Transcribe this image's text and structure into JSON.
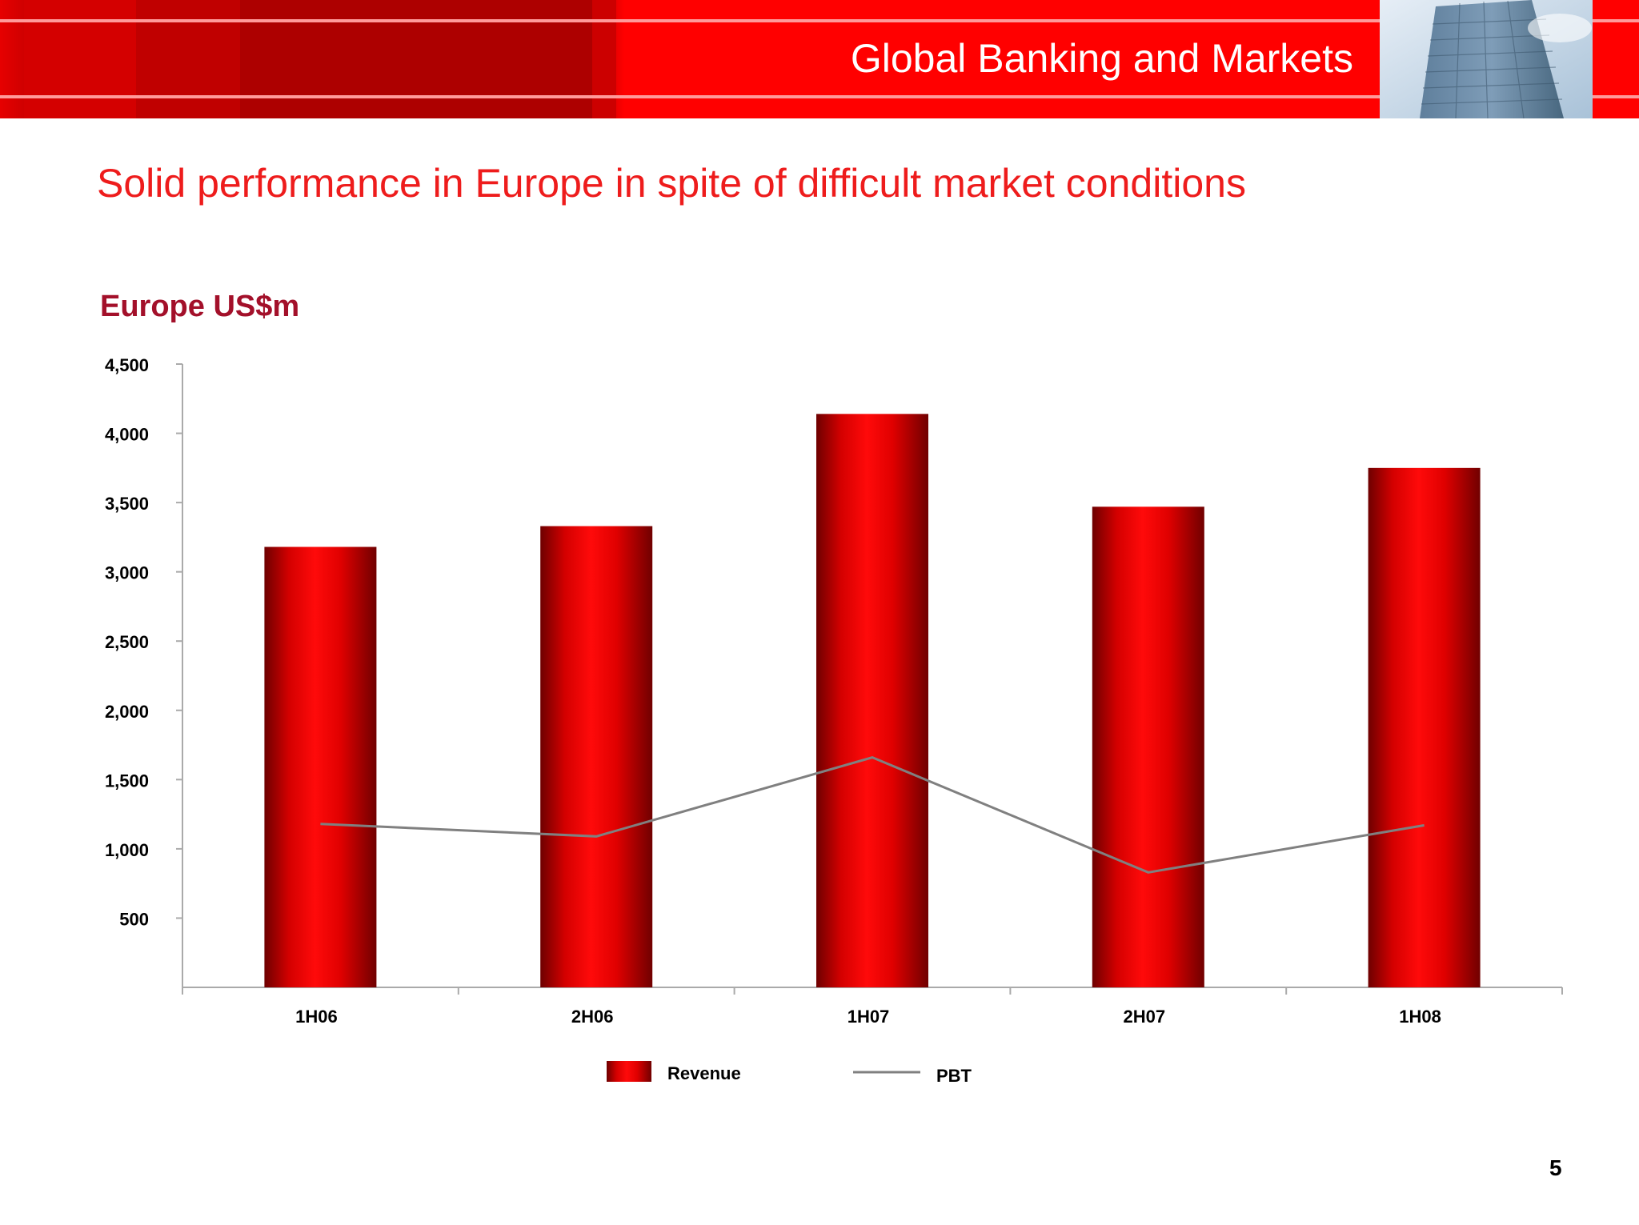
{
  "header": {
    "title": "Global Banking and Markets"
  },
  "slide": {
    "heading": "Solid performance in Europe in spite of difficult market conditions",
    "page_number": "5"
  },
  "colors": {
    "brand_red": "#ff0000",
    "heading_red": "#ee1c1c",
    "chart_title": "#a3102a",
    "pbt_line": "#808080"
  },
  "chart_data": {
    "type": "bar",
    "title": "Europe US$m",
    "xlabel": "",
    "ylabel": "",
    "categories": [
      "1H06",
      "2H06",
      "1H07",
      "2H07",
      "1H08"
    ],
    "ylim": [
      0,
      4500
    ],
    "yticks": [
      500,
      1000,
      1500,
      2000,
      2500,
      3000,
      3500,
      4000,
      4500
    ],
    "ytick_labels": [
      "500",
      "1,000",
      "1,500",
      "2,000",
      "2,500",
      "3,000",
      "3,500",
      "4,000",
      "4,500"
    ],
    "grid": false,
    "legend_position": "bottom-center",
    "series": [
      {
        "name": "Revenue",
        "type": "bar",
        "values": [
          3180,
          3330,
          4140,
          3470,
          3750
        ]
      },
      {
        "name": "PBT",
        "type": "line",
        "values": [
          1180,
          1090,
          1660,
          830,
          1170
        ]
      }
    ]
  }
}
